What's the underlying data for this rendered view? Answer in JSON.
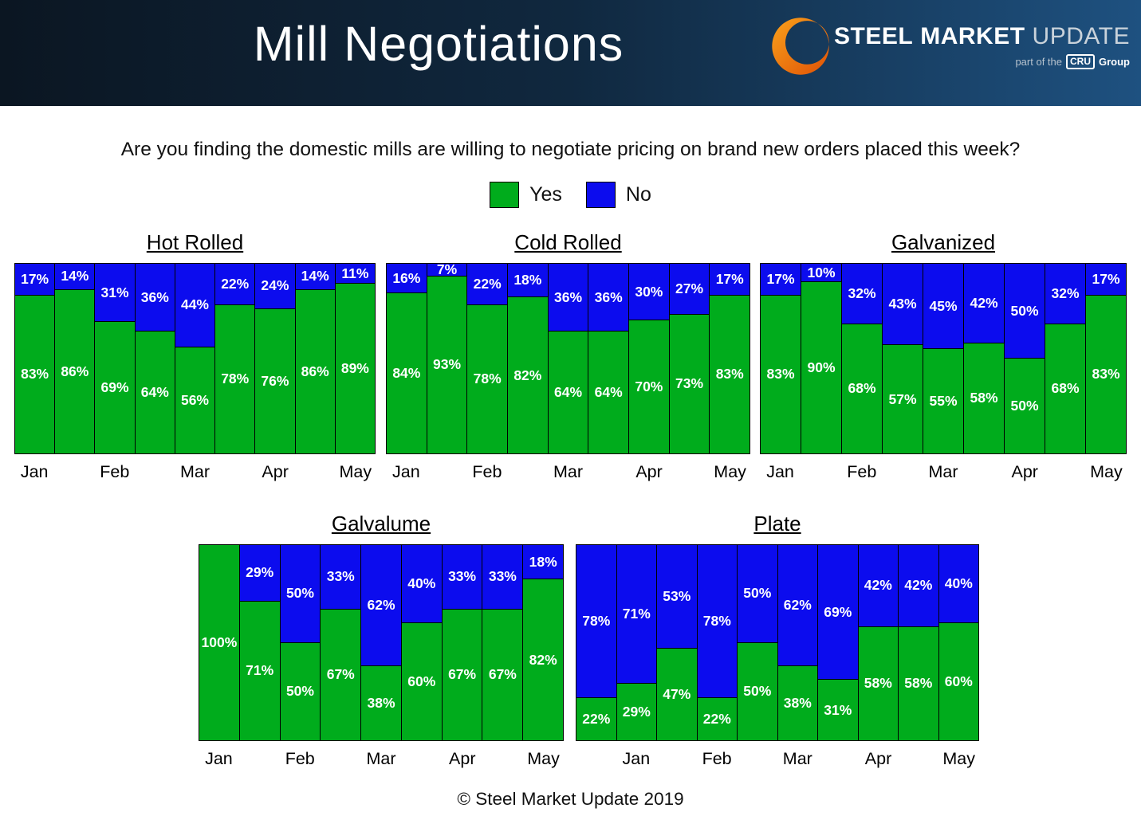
{
  "header": {
    "title": "Mill Negotiations",
    "logo": {
      "steel": "STEEL",
      "market": "MARKET",
      "update": "UPDATE",
      "tagline_prefix": "part of the",
      "cru": "CRU",
      "tagline_suffix": "Group"
    }
  },
  "question": "Are you finding the domestic mills are willing to negotiate pricing on brand new orders placed this week?",
  "legend": {
    "yes_label": "Yes",
    "no_label": "No"
  },
  "colors": {
    "yes": "#00AC1C",
    "no": "#0C0CEE"
  },
  "footer": "© Steel Market Update 2019",
  "chart_data": [
    {
      "type": "bar",
      "stacked": true,
      "title": "Hot Rolled",
      "unit": "%",
      "ylim": [
        0,
        100
      ],
      "categories": [
        "Jan",
        "Feb",
        "Mar",
        "Apr",
        "May"
      ],
      "category_bar_index": [
        0,
        2,
        4,
        6,
        8
      ],
      "series": [
        {
          "name": "Yes",
          "values": [
            83,
            86,
            69,
            64,
            56,
            78,
            76,
            86,
            89
          ]
        },
        {
          "name": "No",
          "values": [
            17,
            14,
            31,
            36,
            44,
            22,
            24,
            14,
            11
          ]
        }
      ]
    },
    {
      "type": "bar",
      "stacked": true,
      "title": "Cold Rolled",
      "unit": "%",
      "ylim": [
        0,
        100
      ],
      "categories": [
        "Jan",
        "Feb",
        "Mar",
        "Apr",
        "May"
      ],
      "category_bar_index": [
        0,
        2,
        4,
        6,
        8
      ],
      "series": [
        {
          "name": "Yes",
          "values": [
            84,
            93,
            78,
            82,
            64,
            64,
            70,
            73,
            83
          ]
        },
        {
          "name": "No",
          "values": [
            16,
            7,
            22,
            18,
            36,
            36,
            30,
            27,
            17
          ]
        }
      ]
    },
    {
      "type": "bar",
      "stacked": true,
      "title": "Galvanized",
      "unit": "%",
      "ylim": [
        0,
        100
      ],
      "categories": [
        "Jan",
        "Feb",
        "Mar",
        "Apr",
        "May"
      ],
      "category_bar_index": [
        0,
        2,
        4,
        6,
        8
      ],
      "series": [
        {
          "name": "Yes",
          "values": [
            83,
            90,
            68,
            57,
            55,
            58,
            50,
            68,
            83
          ]
        },
        {
          "name": "No",
          "values": [
            17,
            10,
            32,
            43,
            45,
            42,
            50,
            32,
            17
          ]
        }
      ]
    },
    {
      "type": "bar",
      "stacked": true,
      "title": "Galvalume",
      "unit": "%",
      "ylim": [
        0,
        100
      ],
      "categories": [
        "Jan",
        "Feb",
        "Mar",
        "Apr",
        "May"
      ],
      "category_bar_index": [
        0,
        2,
        4,
        6,
        8
      ],
      "series": [
        {
          "name": "Yes",
          "values": [
            100,
            71,
            50,
            67,
            38,
            60,
            67,
            67,
            82
          ]
        },
        {
          "name": "No",
          "values": [
            0,
            29,
            50,
            33,
            62,
            40,
            33,
            33,
            18
          ]
        }
      ]
    },
    {
      "type": "bar",
      "stacked": true,
      "title": "Plate",
      "unit": "%",
      "ylim": [
        0,
        100
      ],
      "categories": [
        "Jan",
        "Feb",
        "Mar",
        "Apr",
        "May"
      ],
      "category_bar_index": [
        1,
        3,
        5,
        7,
        9
      ],
      "series": [
        {
          "name": "Yes",
          "values": [
            22,
            29,
            47,
            22,
            50,
            38,
            31,
            58,
            58,
            60
          ]
        },
        {
          "name": "No",
          "values": [
            78,
            71,
            53,
            78,
            50,
            62,
            69,
            42,
            42,
            40
          ]
        }
      ]
    }
  ]
}
